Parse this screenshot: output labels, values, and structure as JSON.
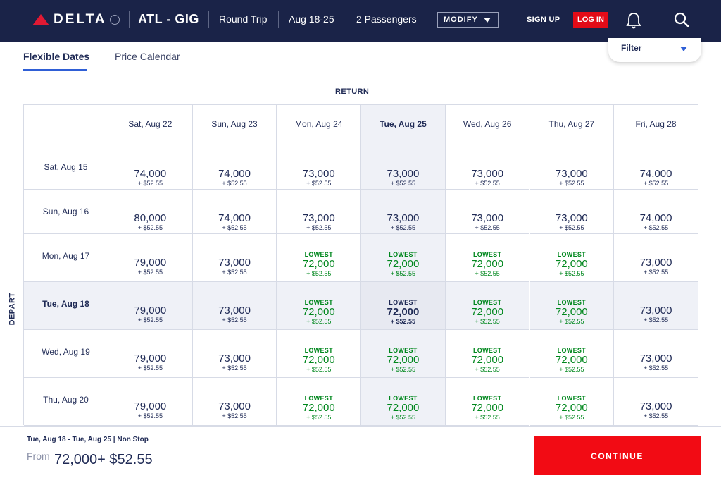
{
  "header": {
    "logo_text": "DELTA",
    "route": "ATL - GIG",
    "trip_type": "Round Trip",
    "dates": "Aug 18-25",
    "passengers": "2 Passengers",
    "modify_label": "MODIFY",
    "signup_label": "SIGN UP",
    "login_label": "LOG IN"
  },
  "tabs": {
    "flexible": "Flexible Dates",
    "calendar": "Price Calendar"
  },
  "filter_label": "Filter",
  "return_label": "RETURN",
  "depart_label": "DEPART",
  "columns": [
    "Sat, Aug 22",
    "Sun, Aug 23",
    "Mon, Aug 24",
    "Tue, Aug 25",
    "Wed, Aug 26",
    "Thu, Aug 27",
    "Fri, Aug 28"
  ],
  "rows": [
    {
      "date": "Sat, Aug 15",
      "cells": [
        {
          "miles": "74,000",
          "fee": "+ $52.55",
          "lowest": false
        },
        {
          "miles": "74,000",
          "fee": "+ $52.55",
          "lowest": false
        },
        {
          "miles": "73,000",
          "fee": "+ $52.55",
          "lowest": false
        },
        {
          "miles": "73,000",
          "fee": "+ $52.55",
          "lowest": false
        },
        {
          "miles": "73,000",
          "fee": "+ $52.55",
          "lowest": false
        },
        {
          "miles": "73,000",
          "fee": "+ $52.55",
          "lowest": false
        },
        {
          "miles": "74,000",
          "fee": "+ $52.55",
          "lowest": false
        }
      ]
    },
    {
      "date": "Sun, Aug 16",
      "cells": [
        {
          "miles": "80,000",
          "fee": "+ $52.55",
          "lowest": false
        },
        {
          "miles": "74,000",
          "fee": "+ $52.55",
          "lowest": false
        },
        {
          "miles": "73,000",
          "fee": "+ $52.55",
          "lowest": false
        },
        {
          "miles": "73,000",
          "fee": "+ $52.55",
          "lowest": false
        },
        {
          "miles": "73,000",
          "fee": "+ $52.55",
          "lowest": false
        },
        {
          "miles": "73,000",
          "fee": "+ $52.55",
          "lowest": false
        },
        {
          "miles": "74,000",
          "fee": "+ $52.55",
          "lowest": false
        }
      ]
    },
    {
      "date": "Mon, Aug 17",
      "cells": [
        {
          "miles": "79,000",
          "fee": "+ $52.55",
          "lowest": false
        },
        {
          "miles": "73,000",
          "fee": "+ $52.55",
          "lowest": false
        },
        {
          "miles": "72,000",
          "fee": "+ $52.55",
          "lowest": true
        },
        {
          "miles": "72,000",
          "fee": "+ $52.55",
          "lowest": true
        },
        {
          "miles": "72,000",
          "fee": "+ $52.55",
          "lowest": true
        },
        {
          "miles": "72,000",
          "fee": "+ $52.55",
          "lowest": true
        },
        {
          "miles": "73,000",
          "fee": "+ $52.55",
          "lowest": false
        }
      ]
    },
    {
      "date": "Tue, Aug 18",
      "cells": [
        {
          "miles": "79,000",
          "fee": "+ $52.55",
          "lowest": false
        },
        {
          "miles": "73,000",
          "fee": "+ $52.55",
          "lowest": false
        },
        {
          "miles": "72,000",
          "fee": "+ $52.55",
          "lowest": true
        },
        {
          "miles": "72,000",
          "fee": "+ $52.55",
          "lowest": true
        },
        {
          "miles": "72,000",
          "fee": "+ $52.55",
          "lowest": true
        },
        {
          "miles": "72,000",
          "fee": "+ $52.55",
          "lowest": true
        },
        {
          "miles": "73,000",
          "fee": "+ $52.55",
          "lowest": false
        }
      ]
    },
    {
      "date": "Wed, Aug 19",
      "cells": [
        {
          "miles": "79,000",
          "fee": "+ $52.55",
          "lowest": false
        },
        {
          "miles": "73,000",
          "fee": "+ $52.55",
          "lowest": false
        },
        {
          "miles": "72,000",
          "fee": "+ $52.55",
          "lowest": true
        },
        {
          "miles": "72,000",
          "fee": "+ $52.55",
          "lowest": true
        },
        {
          "miles": "72,000",
          "fee": "+ $52.55",
          "lowest": true
        },
        {
          "miles": "72,000",
          "fee": "+ $52.55",
          "lowest": true
        },
        {
          "miles": "73,000",
          "fee": "+ $52.55",
          "lowest": false
        }
      ]
    },
    {
      "date": "Thu, Aug 20",
      "cells": [
        {
          "miles": "79,000",
          "fee": "+ $52.55",
          "lowest": false
        },
        {
          "miles": "73,000",
          "fee": "+ $52.55",
          "lowest": false
        },
        {
          "miles": "72,000",
          "fee": "+ $52.55",
          "lowest": true
        },
        {
          "miles": "72,000",
          "fee": "+ $52.55",
          "lowest": true
        },
        {
          "miles": "72,000",
          "fee": "+ $52.55",
          "lowest": true
        },
        {
          "miles": "72,000",
          "fee": "+ $52.55",
          "lowest": true
        },
        {
          "miles": "73,000",
          "fee": "+ $52.55",
          "lowest": false
        }
      ]
    }
  ],
  "lowest_label": "LOWEST",
  "selected": {
    "row": 3,
    "col": 3
  },
  "footer": {
    "trip_info": "Tue, Aug 18  - Tue, Aug 25   |   Non Stop",
    "from_label": "From",
    "from_price": "72,000+ $52.55",
    "continue_label": "CONTINUE"
  },
  "colors": {
    "navy": "#1a2348",
    "red": "#e30b17",
    "green": "#00871d",
    "blue": "#2f5fd6"
  },
  "icons": [
    "delta-logo-icon",
    "caret-down-icon",
    "bell-icon",
    "search-icon"
  ]
}
